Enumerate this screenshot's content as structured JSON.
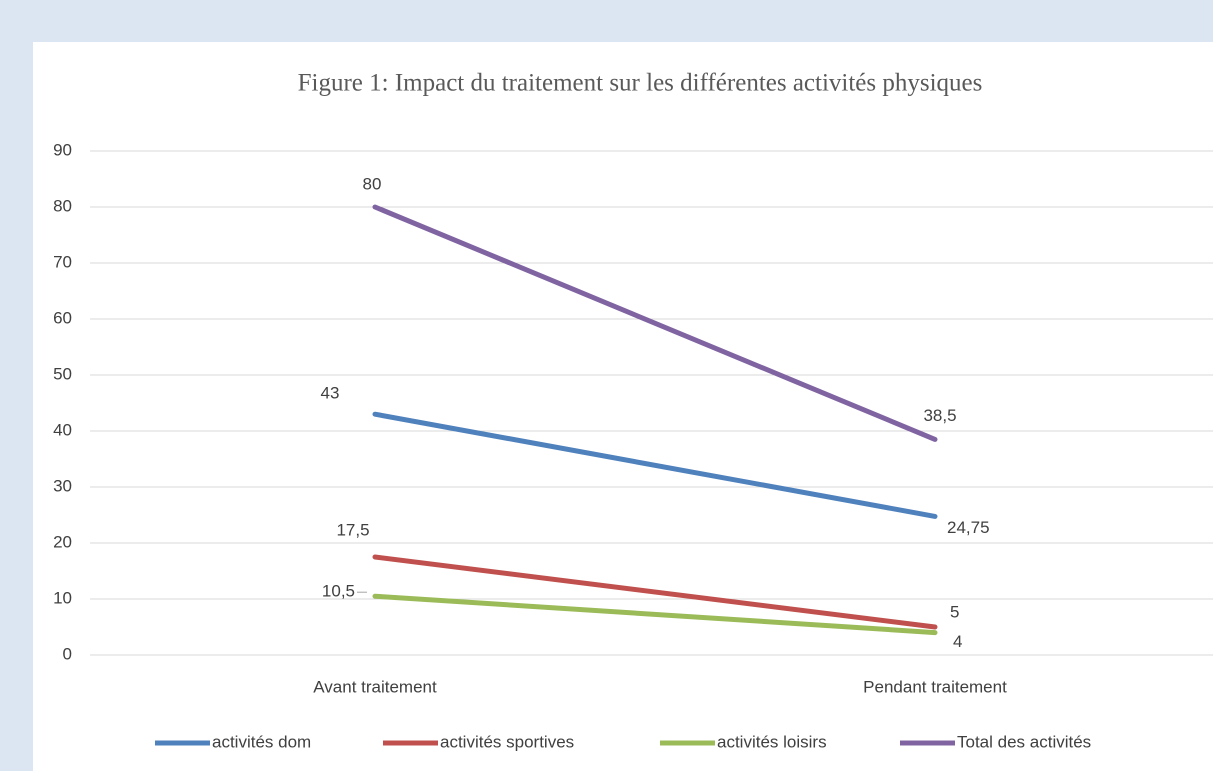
{
  "chart_data": {
    "type": "line",
    "title": "Figure 1: Impact du traitement sur les différentes activités physiques",
    "categories": [
      "Avant traitement",
      "Pendant traitement"
    ],
    "series": [
      {
        "name": "activités dom",
        "color": "#4f81bd",
        "values": [
          43,
          24.75
        ],
        "value_labels": [
          "43",
          "24,75"
        ]
      },
      {
        "name": "activités sportives",
        "color": "#c0504d",
        "values": [
          17.5,
          5
        ],
        "value_labels": [
          "17,5",
          "5"
        ]
      },
      {
        "name": "activités loisirs",
        "color": "#9bbb59",
        "values": [
          10.5,
          4
        ],
        "value_labels": [
          "10,5",
          "4"
        ]
      },
      {
        "name": "Total des activités",
        "color": "#8064a2",
        "values": [
          80,
          38.5
        ],
        "value_labels": [
          "80",
          "38,5"
        ]
      }
    ],
    "ylim": [
      0,
      90
    ],
    "yticks": [
      0,
      10,
      20,
      30,
      40,
      50,
      60,
      70,
      80,
      90
    ],
    "grid": true,
    "legend": "bottom"
  }
}
